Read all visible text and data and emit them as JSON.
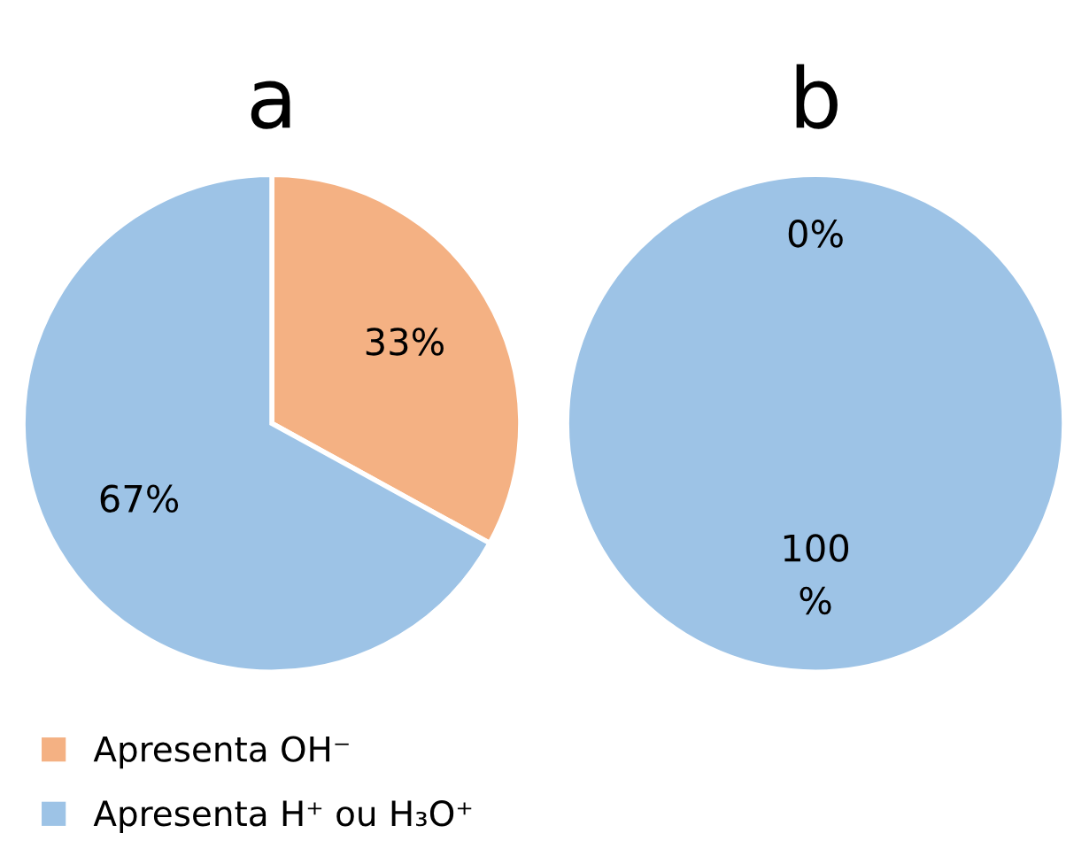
{
  "chart_data": [
    {
      "type": "pie",
      "title": "a",
      "categories": [
        "Apresenta OH⁻",
        "Apresenta H⁺ ou H₃O⁺"
      ],
      "values": [
        33,
        67
      ],
      "value_labels": [
        "33%",
        "67%"
      ],
      "colors": [
        "#f4b183",
        "#9dc3e6"
      ],
      "legend": "bottom left"
    },
    {
      "type": "pie",
      "title": "b",
      "categories": [
        null,
        null
      ],
      "values": [
        0,
        100
      ],
      "value_labels": [
        "0%",
        "100\n%"
      ],
      "colors": [
        "#f4b183",
        "#9dc3e6"
      ]
    }
  ]
}
